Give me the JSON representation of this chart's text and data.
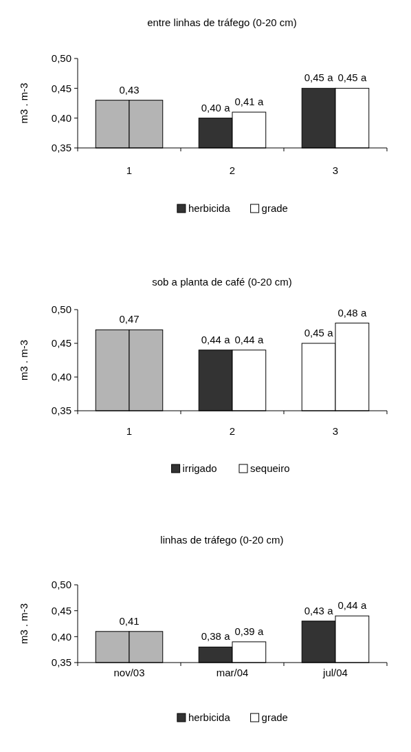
{
  "chart_data": [
    {
      "type": "bar",
      "title": "entre linhas de tráfego (0-20 cm)",
      "ylabel": "m3 . m-3",
      "categories": [
        "1",
        "2",
        "3"
      ],
      "ylim": [
        0.35,
        0.5
      ],
      "yticks": [
        {
          "value": 0.35,
          "label": "0,35"
        },
        {
          "value": 0.4,
          "label": "0,40"
        },
        {
          "value": 0.45,
          "label": "0,45"
        },
        {
          "value": 0.5,
          "label": "0,50"
        }
      ],
      "legend": "bottom",
      "series": [
        {
          "name": "herbicida",
          "color": "#333333",
          "colors": [
            "#b4b4b4",
            "#333333",
            "#333333"
          ],
          "values": [
            0.43,
            0.4,
            0.45
          ],
          "value_labels": [
            "0,43",
            "0,40 a",
            "0,45 a"
          ]
        },
        {
          "name": "grade",
          "color": "#ffffff",
          "colors": [
            "#b4b4b4",
            "#ffffff",
            "#ffffff"
          ],
          "values": [
            0.43,
            0.41,
            0.45
          ],
          "value_labels": [
            null,
            "0,41 a",
            "0,45 a"
          ]
        }
      ]
    },
    {
      "type": "bar",
      "title": "sob a planta de café (0-20 cm)",
      "ylabel": "m3 . m-3",
      "categories": [
        "1",
        "2",
        "3"
      ],
      "ylim": [
        0.35,
        0.5
      ],
      "yticks": [
        {
          "value": 0.35,
          "label": "0,35"
        },
        {
          "value": 0.4,
          "label": "0,40"
        },
        {
          "value": 0.45,
          "label": "0,45"
        },
        {
          "value": 0.5,
          "label": "0,50"
        }
      ],
      "legend": "bottom",
      "series": [
        {
          "name": "irrigado",
          "color": "#333333",
          "colors": [
            "#b4b4b4",
            "#333333",
            "#ffffff"
          ],
          "values": [
            0.47,
            0.44,
            0.45
          ],
          "value_labels": [
            "0,47",
            "0,44 a",
            "0,45 a"
          ]
        },
        {
          "name": "sequeiro",
          "color": "#ffffff",
          "colors": [
            "#b4b4b4",
            "#ffffff",
            "#ffffff"
          ],
          "values": [
            0.47,
            0.44,
            0.48
          ],
          "value_labels": [
            null,
            "0,44 a",
            "0,48 a"
          ]
        }
      ]
    },
    {
      "type": "bar",
      "title": "linhas de tráfego (0-20 cm)",
      "ylabel": "m3 . m-3",
      "categories": [
        "nov/03",
        "mar/04",
        "jul/04"
      ],
      "ylim": [
        0.35,
        0.5
      ],
      "yticks": [
        {
          "value": 0.35,
          "label": "0,35"
        },
        {
          "value": 0.4,
          "label": "0,40"
        },
        {
          "value": 0.45,
          "label": "0,45"
        },
        {
          "value": 0.5,
          "label": "0,50"
        }
      ],
      "legend": "bottom",
      "series": [
        {
          "name": "herbicida",
          "color": "#333333",
          "colors": [
            "#b4b4b4",
            "#333333",
            "#333333"
          ],
          "values": [
            0.41,
            0.38,
            0.43
          ],
          "value_labels": [
            "0,41",
            "0,38 a",
            "0,43 a"
          ]
        },
        {
          "name": "grade",
          "color": "#ffffff",
          "colors": [
            "#b4b4b4",
            "#ffffff",
            "#ffffff"
          ],
          "values": [
            0.41,
            0.39,
            0.44
          ],
          "value_labels": [
            null,
            "0,39 a",
            "0,44 a"
          ]
        }
      ]
    }
  ]
}
